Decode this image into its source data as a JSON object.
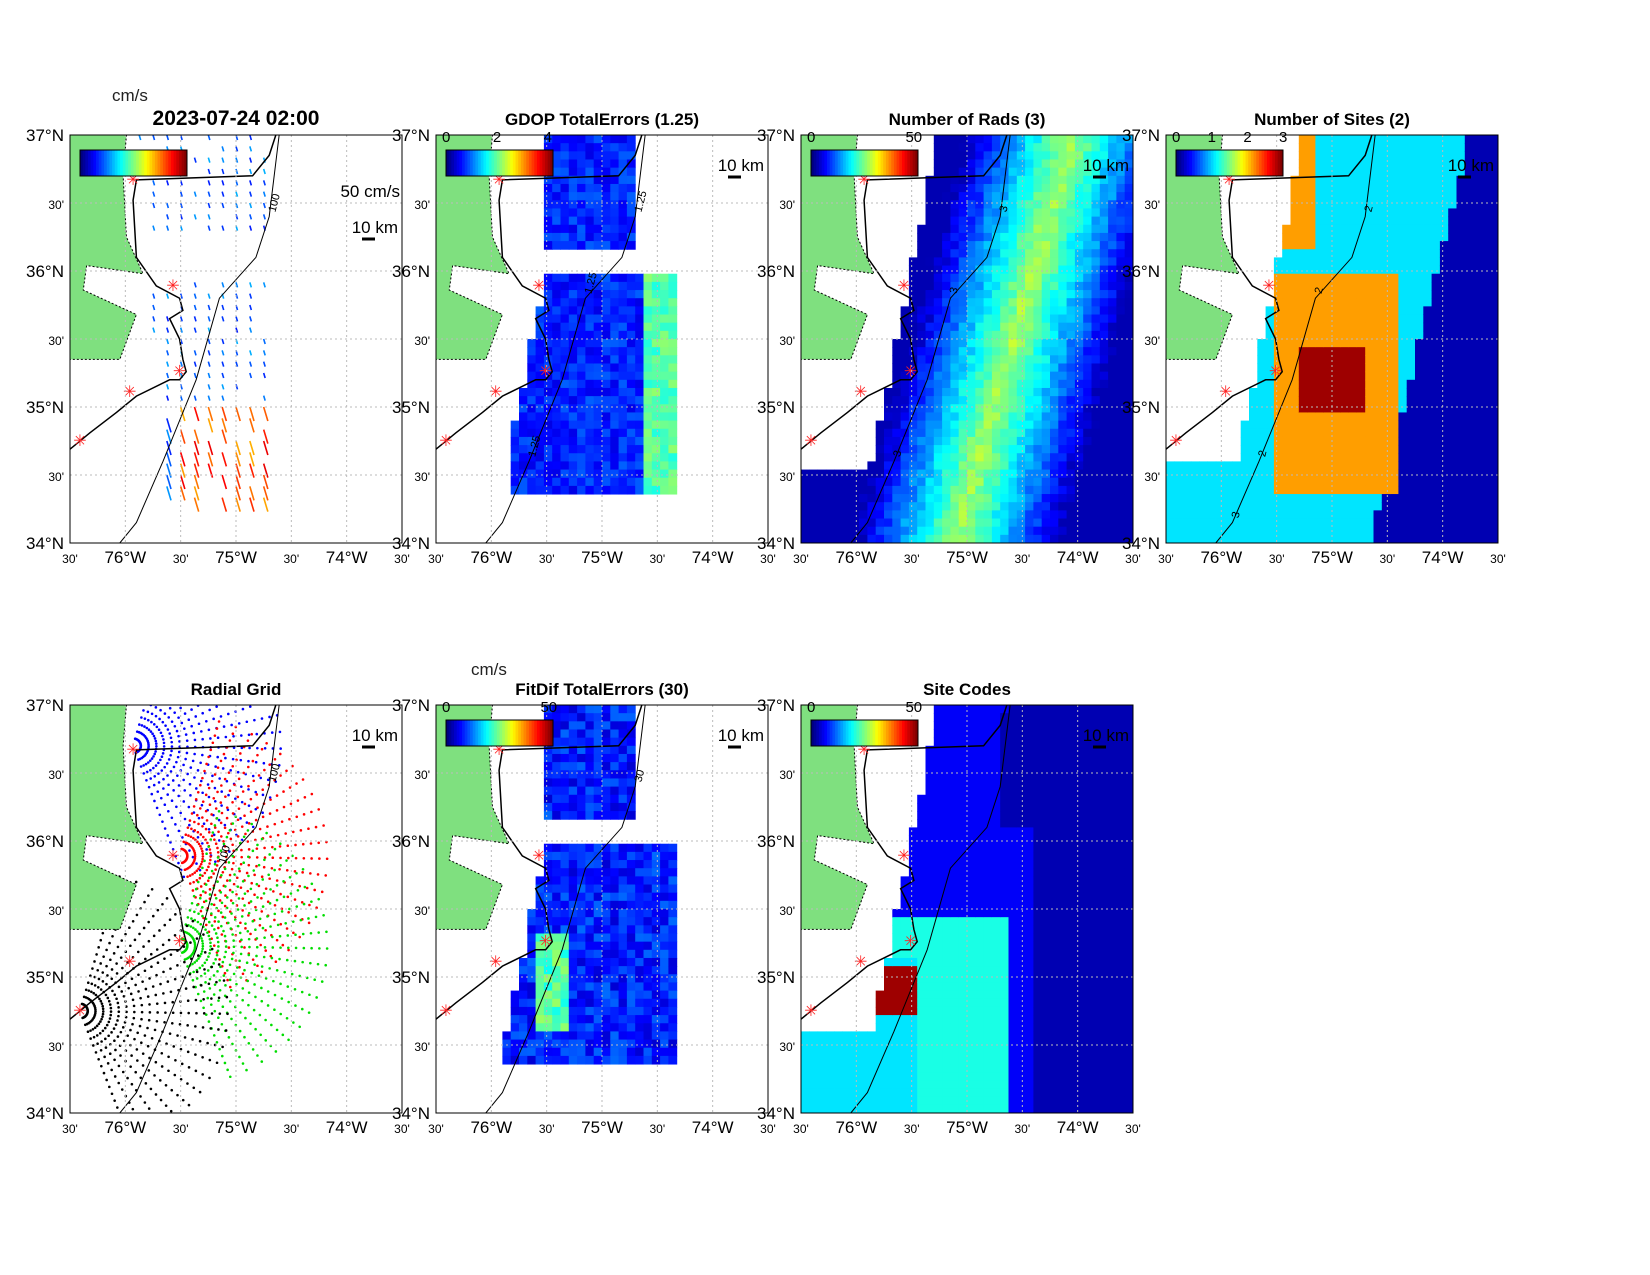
{
  "chart_data": {
    "type": "heatmap",
    "lat_ticks": [
      "37°N",
      "30'",
      "36°N",
      "30'",
      "35°N",
      "30'",
      "34°N"
    ],
    "lon_ticks": [
      "30'",
      "76°W",
      "30'",
      "75°W",
      "30'",
      "74°W",
      "30'"
    ],
    "xlim": [
      -76.5,
      -73.5
    ],
    "ylim": [
      34,
      37
    ],
    "grid": true,
    "panels": [
      {
        "title": "2023-07-24 02:00",
        "kind": "vectors",
        "cbar_unit": "cm/s",
        "cbar_ticks": [],
        "scale_vector": "50 cm/s",
        "scale_bar": "10 km",
        "contour_labels": [
          "100"
        ]
      },
      {
        "title": "GDOP TotalErrors (1.25)",
        "kind": "gdop",
        "cbar_ticks": [
          "0",
          "2",
          "4"
        ],
        "scale_bar": "10 km",
        "contour_labels": [
          "1.25",
          "1.25",
          "1.25"
        ]
      },
      {
        "title": "Number of Rads (3)",
        "kind": "rads",
        "cbar_ticks": [
          "0",
          "50"
        ],
        "scale_bar": "10 km",
        "contour_labels": [
          "3",
          "3",
          "3"
        ]
      },
      {
        "title": "Number of Sites (2)",
        "kind": "sites",
        "cbar_ticks": [
          "0",
          "1",
          "2",
          "3"
        ],
        "scale_bar": "10 km",
        "contour_labels": [
          "2",
          "2",
          "2",
          "3"
        ]
      },
      {
        "title": "Radial Grid",
        "kind": "radial",
        "cbar_ticks": [],
        "scale_bar": "10 km",
        "contour_labels": [
          "100",
          "100"
        ]
      },
      {
        "title": "FitDif TotalErrors (30)",
        "kind": "fitdif",
        "cbar_unit": "cm/s",
        "cbar_ticks": [
          "0",
          "50"
        ],
        "scale_bar": "10 km",
        "contour_labels": [
          "30"
        ]
      },
      {
        "title": "Site Codes",
        "kind": "codes",
        "cbar_ticks": [
          "0",
          "50"
        ],
        "scale_bar": "10 km",
        "contour_labels": []
      }
    ]
  },
  "colors": {
    "land": "#7fe07f",
    "site": "#ff2020"
  }
}
